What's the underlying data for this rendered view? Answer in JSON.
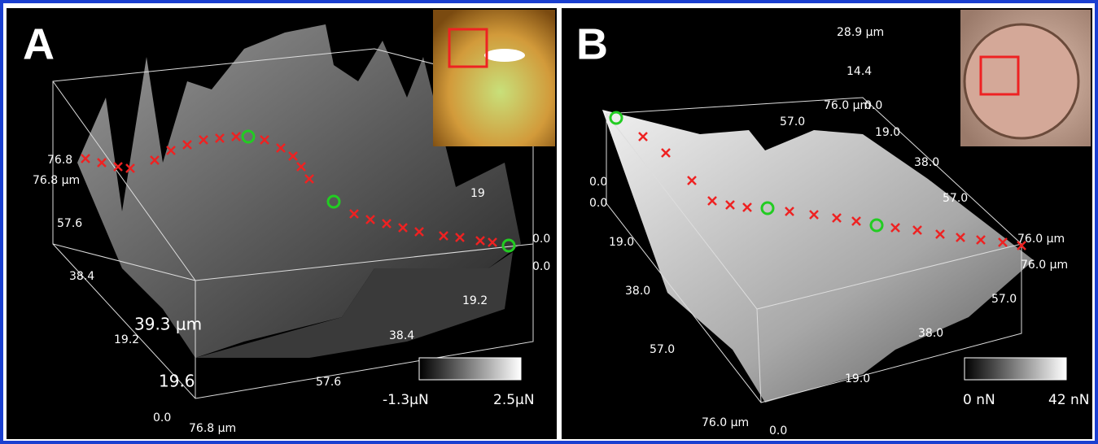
{
  "panels": [
    {
      "letter": "A",
      "labels": [
        "76.8",
        "76.8 μm",
        "57.6",
        "38.4",
        "19.2",
        "0.0",
        "76.8 μm",
        "57.6",
        "38.4",
        "19.2",
        "0.0",
        "0.0",
        "19"
      ],
      "height_label": "39.3 μm",
      "height_tick": "19.6",
      "colorbar": {
        "min": "-1.3μN",
        "max": "2.5μN"
      }
    },
    {
      "letter": "B",
      "labels": [
        "28.9 μm",
        "14.4",
        "76.0 μm",
        "0.0",
        "57.0",
        "19.0",
        "38.0",
        "57.0",
        "0.0",
        "0.0",
        "19.0",
        "38.0",
        "57.0",
        "76.0 μm",
        "76.0 μm",
        "57.0",
        "38.0",
        "19.0",
        "76.0 μm",
        "0.0"
      ],
      "colorbar": {
        "min": "0 nN",
        "max": "42 nN"
      }
    }
  ]
}
